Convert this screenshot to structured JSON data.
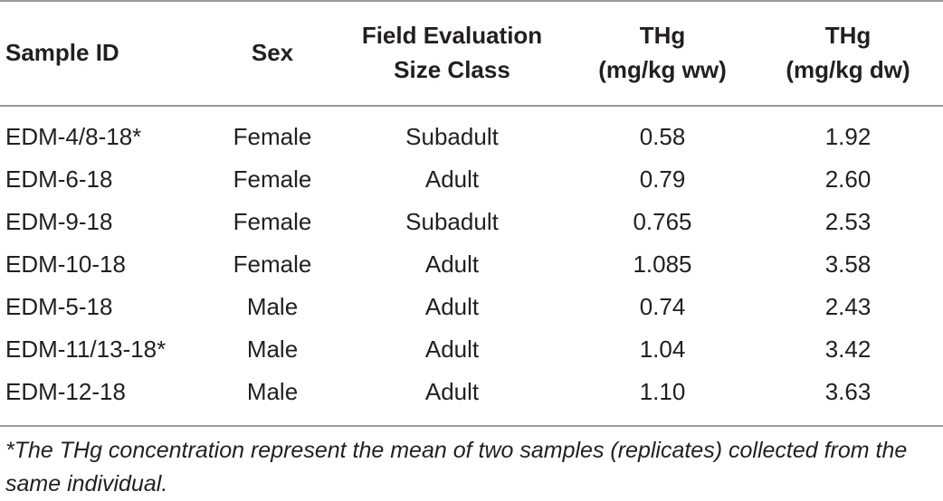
{
  "table": {
    "headers": [
      {
        "line1": "Sample ID",
        "line2": ""
      },
      {
        "line1": "Sex",
        "line2": ""
      },
      {
        "line1": "Field Evaluation",
        "line2": "Size Class"
      },
      {
        "line1": "THg",
        "line2": "(mg/kg ww)"
      },
      {
        "line1": "THg",
        "line2": "(mg/kg dw)"
      }
    ],
    "rows": [
      [
        "EDM-4/8-18*",
        "Female",
        "Subadult",
        "0.58",
        "1.92"
      ],
      [
        "EDM-6-18",
        "Female",
        "Adult",
        "0.79",
        "2.60"
      ],
      [
        "EDM-9-18",
        "Female",
        "Subadult",
        "0.765",
        "2.53"
      ],
      [
        "EDM-10-18",
        "Female",
        "Adult",
        "1.085",
        "3.58"
      ],
      [
        "EDM-5-18",
        "Male",
        "Adult",
        "0.74",
        "2.43"
      ],
      [
        "EDM-11/13-18*",
        "Male",
        "Adult",
        "1.04",
        "3.42"
      ],
      [
        "EDM-12-18",
        "Male",
        "Adult",
        "1.10",
        "3.63"
      ]
    ]
  },
  "footnote": "*The THg concentration represent the mean of two samples (replicates) collected from the same individual."
}
